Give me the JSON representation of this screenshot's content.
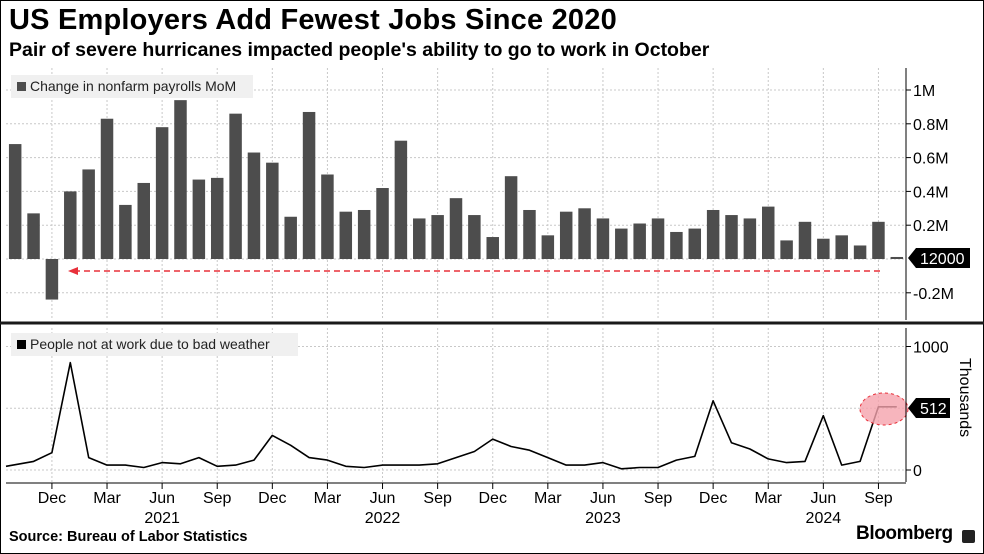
{
  "title": "US Employers Add Fewest Jobs Since 2020",
  "subtitle": "Pair of severe hurricanes impacted people's ability to go to work in October",
  "source": "Source: Bureau of Labor Statistics",
  "brand": "Bloomberg",
  "colors": {
    "bar": "#4d4d4d",
    "line": "#000000",
    "grid": "#c8c8c8",
    "dashed_arrow": "#e8303a",
    "highlight_ellipse": "#f5a3ac",
    "callout_bg": "#000000",
    "callout_text": "#ffffff"
  },
  "chart_data": [
    {
      "type": "bar",
      "legend": "Change in nonfarm payrolls MoM",
      "legend_position": "top-left",
      "grid": true,
      "ylim": [
        -0.25,
        1.1
      ],
      "yticks": [
        {
          "value": 1.0,
          "label": "1M"
        },
        {
          "value": 0.8,
          "label": "0.8M"
        },
        {
          "value": 0.6,
          "label": "0.6M"
        },
        {
          "value": 0.4,
          "label": "0.4M"
        },
        {
          "value": 0.2,
          "label": "0.2M"
        },
        {
          "value": -0.2,
          "label": "-0.2M"
        }
      ],
      "callout": {
        "label": "12000",
        "value": 0.012
      },
      "annotation": "dashed red arrow pointing left from latest value",
      "x": [
        "2020-10",
        "2020-11",
        "2020-12",
        "2021-01",
        "2021-02",
        "2021-03",
        "2021-04",
        "2021-05",
        "2021-06",
        "2021-07",
        "2021-08",
        "2021-09",
        "2021-10",
        "2021-11",
        "2021-12",
        "2022-01",
        "2022-02",
        "2022-03",
        "2022-04",
        "2022-05",
        "2022-06",
        "2022-07",
        "2022-08",
        "2022-09",
        "2022-10",
        "2022-11",
        "2022-12",
        "2023-01",
        "2023-02",
        "2023-03",
        "2023-04",
        "2023-05",
        "2023-06",
        "2023-07",
        "2023-08",
        "2023-09",
        "2023-10",
        "2023-11",
        "2023-12",
        "2024-01",
        "2024-02",
        "2024-03",
        "2024-04",
        "2024-05",
        "2024-06",
        "2024-07",
        "2024-08",
        "2024-09",
        "2024-10"
      ],
      "values": [
        0.68,
        0.27,
        -0.24,
        0.4,
        0.53,
        0.83,
        0.32,
        0.45,
        0.78,
        0.94,
        0.47,
        0.48,
        0.86,
        0.63,
        0.57,
        0.25,
        0.87,
        0.5,
        0.28,
        0.29,
        0.42,
        0.7,
        0.24,
        0.26,
        0.36,
        0.26,
        0.13,
        0.49,
        0.29,
        0.14,
        0.28,
        0.3,
        0.24,
        0.18,
        0.21,
        0.24,
        0.16,
        0.18,
        0.29,
        0.26,
        0.24,
        0.31,
        0.11,
        0.22,
        0.12,
        0.14,
        0.08,
        0.22,
        0.012
      ]
    },
    {
      "type": "line",
      "legend": "People not at work due to bad weather",
      "legend_position": "top-left",
      "ylabel": "Thousands",
      "grid": true,
      "ylim": [
        -60,
        1000
      ],
      "yticks": [
        {
          "value": 1000,
          "label": "1000"
        },
        {
          "value": 0,
          "label": "0"
        }
      ],
      "callout": {
        "label": "512",
        "value": 512
      },
      "x": [
        "2020-10",
        "2020-11",
        "2020-12",
        "2021-01",
        "2021-02",
        "2021-03",
        "2021-04",
        "2021-05",
        "2021-06",
        "2021-07",
        "2021-08",
        "2021-09",
        "2021-10",
        "2021-11",
        "2021-12",
        "2022-01",
        "2022-02",
        "2022-03",
        "2022-04",
        "2022-05",
        "2022-06",
        "2022-07",
        "2022-08",
        "2022-09",
        "2022-10",
        "2022-11",
        "2022-12",
        "2023-01",
        "2023-02",
        "2023-03",
        "2023-04",
        "2023-05",
        "2023-06",
        "2023-07",
        "2023-08",
        "2023-09",
        "2023-10",
        "2023-11",
        "2023-12",
        "2024-01",
        "2024-02",
        "2024-03",
        "2024-04",
        "2024-05",
        "2024-06",
        "2024-07",
        "2024-08",
        "2024-09",
        "2024-10"
      ],
      "values": [
        30,
        70,
        140,
        870,
        100,
        40,
        40,
        20,
        60,
        50,
        100,
        30,
        40,
        80,
        280,
        200,
        100,
        80,
        30,
        20,
        40,
        40,
        40,
        50,
        100,
        150,
        250,
        190,
        160,
        100,
        40,
        40,
        60,
        10,
        20,
        20,
        80,
        110,
        560,
        220,
        170,
        90,
        60,
        70,
        440,
        40,
        70,
        512,
        512
      ],
      "x_axis": {
        "month_ticks": [
          "Dec",
          "Mar",
          "Jun",
          "Sep",
          "Dec",
          "Mar",
          "Jun",
          "Sep",
          "Dec",
          "Mar",
          "Jun",
          "Sep",
          "Dec",
          "Mar",
          "Jun",
          "Sep"
        ],
        "years": [
          "2021",
          "2022",
          "2023",
          "2024"
        ]
      }
    }
  ]
}
